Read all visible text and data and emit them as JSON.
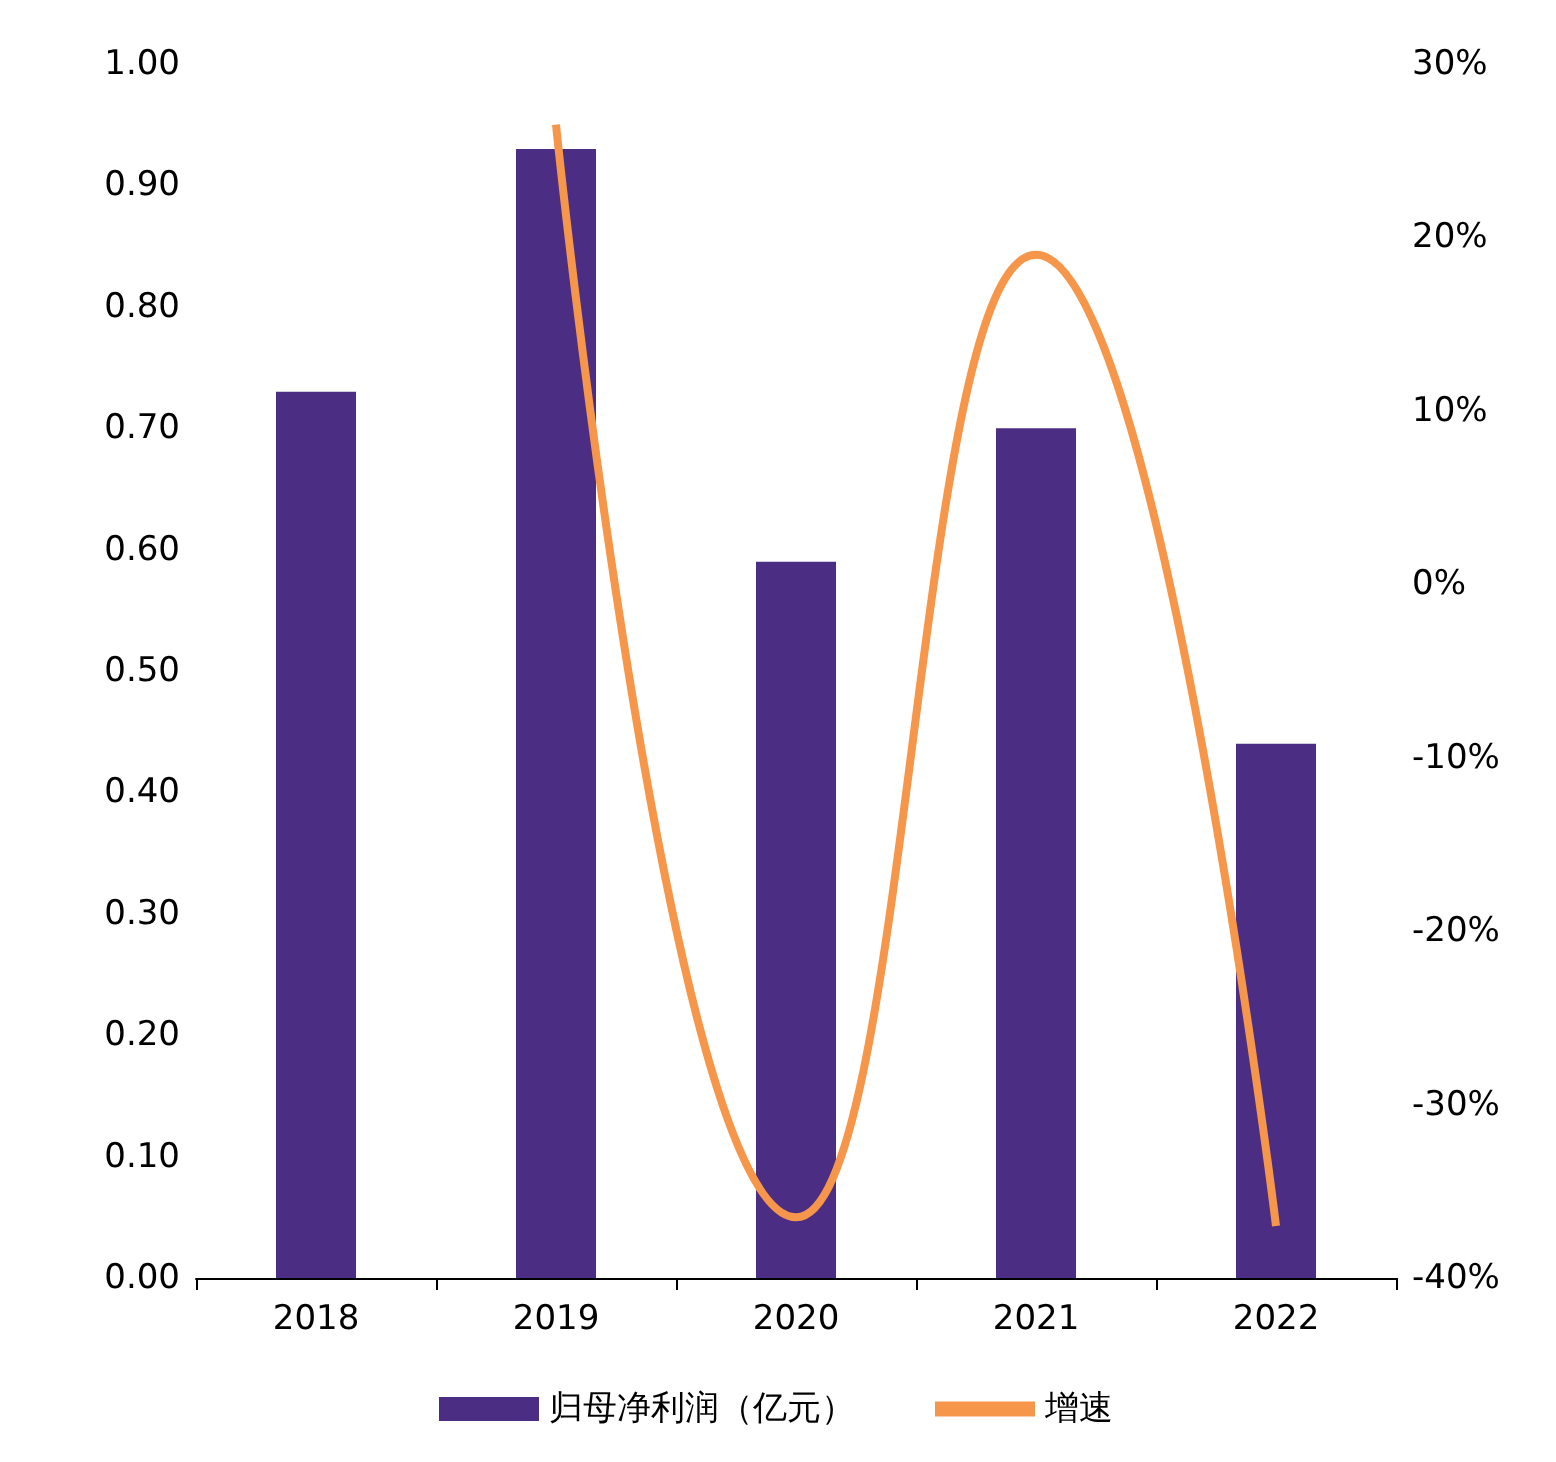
{
  "chart_data": {
    "type": "bar",
    "categories": [
      "2018",
      "2019",
      "2020",
      "2021",
      "2022"
    ],
    "series": [
      {
        "name": "归母净利润（亿元）",
        "color": "#4b2e83",
        "values": [
          0.73,
          0.93,
          0.59,
          0.7,
          0.44
        ]
      },
      {
        "name": "增速",
        "type": "line",
        "color": "#f5964a",
        "axis": "y2",
        "marker": "none",
        "values": [
          null,
          26.5,
          -36.5,
          19,
          -37
        ]
      }
    ],
    "ylim": [
      0,
      1
    ],
    "yticks": [
      {
        "value": 0,
        "label": "0.00"
      },
      {
        "value": 0.1,
        "label": "0.10"
      },
      {
        "value": 0.2,
        "label": "0.20"
      },
      {
        "value": 0.3,
        "label": "0.30"
      },
      {
        "value": 0.4,
        "label": "0.40"
      },
      {
        "value": 0.5,
        "label": "0.50"
      },
      {
        "value": 0.6,
        "label": "0.60"
      },
      {
        "value": 0.7,
        "label": "0.70"
      },
      {
        "value": 0.8,
        "label": "0.80"
      },
      {
        "value": 0.9,
        "label": "0.90"
      },
      {
        "value": 1,
        "label": "1.00"
      }
    ],
    "y2lim": [
      -40,
      30
    ],
    "y2ticks": [
      {
        "value": -40,
        "label": "-40%"
      },
      {
        "value": -30,
        "label": "-30%"
      },
      {
        "value": -20,
        "label": "-20%"
      },
      {
        "value": -10,
        "label": "-10%"
      },
      {
        "value": 0,
        "label": "0%"
      },
      {
        "value": 10,
        "label": "10%"
      },
      {
        "value": 20,
        "label": "20%"
      },
      {
        "value": 30,
        "label": "30%"
      }
    ],
    "grid": false,
    "legend": "bottom"
  }
}
